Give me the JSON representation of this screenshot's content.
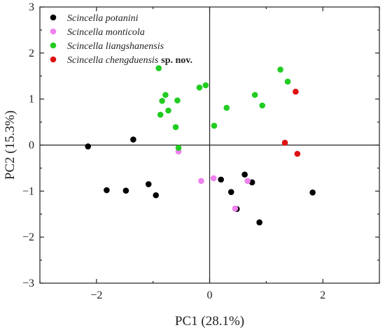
{
  "chart_data": {
    "type": "scatter",
    "xlabel": "PC1 (28.1%)",
    "ylabel": "PC2 (15.3%)",
    "xlim": [
      -3,
      3
    ],
    "ylim": [
      -3,
      3
    ],
    "x_ticks": [
      -2,
      0,
      2
    ],
    "y_ticks": [
      -3,
      -2,
      -1,
      0,
      1,
      2,
      3
    ],
    "x_tick_labels": [
      "−2",
      "0",
      "2"
    ],
    "y_tick_labels": [
      "−3",
      "−2",
      "−1",
      "0",
      "1",
      "2",
      "3"
    ],
    "zero_lines": true,
    "grid": false,
    "legend_position": "top-left",
    "series": [
      {
        "name": "Scincella potanini",
        "color": "#000000",
        "points": [
          [
            -2.15,
            -0.03
          ],
          [
            -1.82,
            -0.98
          ],
          [
            -1.48,
            -0.99
          ],
          [
            -1.35,
            0.12
          ],
          [
            -1.08,
            -0.85
          ],
          [
            -0.95,
            -1.09
          ],
          [
            0.2,
            -0.75
          ],
          [
            0.38,
            -1.02
          ],
          [
            0.48,
            -1.39
          ],
          [
            0.62,
            -0.64
          ],
          [
            0.75,
            -0.81
          ],
          [
            0.88,
            -1.68
          ],
          [
            1.82,
            -1.03
          ]
        ]
      },
      {
        "name": "Scincella monticola",
        "color": "#ee82ee",
        "points": [
          [
            -0.55,
            -0.14
          ],
          [
            -0.15,
            -0.78
          ],
          [
            0.07,
            -0.72
          ],
          [
            0.45,
            -1.38
          ],
          [
            0.67,
            -0.78
          ]
        ]
      },
      {
        "name": "Scincella liangshanensis",
        "color": "#22cc22",
        "points": [
          [
            -0.9,
            1.67
          ],
          [
            -0.87,
            0.66
          ],
          [
            -0.84,
            0.96
          ],
          [
            -0.78,
            1.09
          ],
          [
            -0.73,
            0.75
          ],
          [
            -0.6,
            0.39
          ],
          [
            -0.57,
            0.97
          ],
          [
            -0.55,
            -0.06
          ],
          [
            -0.18,
            1.25
          ],
          [
            -0.07,
            1.3
          ],
          [
            0.08,
            0.42
          ],
          [
            0.3,
            0.81
          ],
          [
            0.8,
            1.09
          ],
          [
            0.93,
            0.86
          ],
          [
            1.25,
            1.64
          ],
          [
            1.38,
            1.38
          ]
        ]
      },
      {
        "name_italic": "Scincella chengduensis",
        "name_bold": "sp. nov.",
        "color": "#dd1111",
        "points": [
          [
            1.33,
            0.05
          ],
          [
            1.52,
            1.16
          ],
          [
            1.55,
            -0.19
          ]
        ]
      }
    ]
  }
}
